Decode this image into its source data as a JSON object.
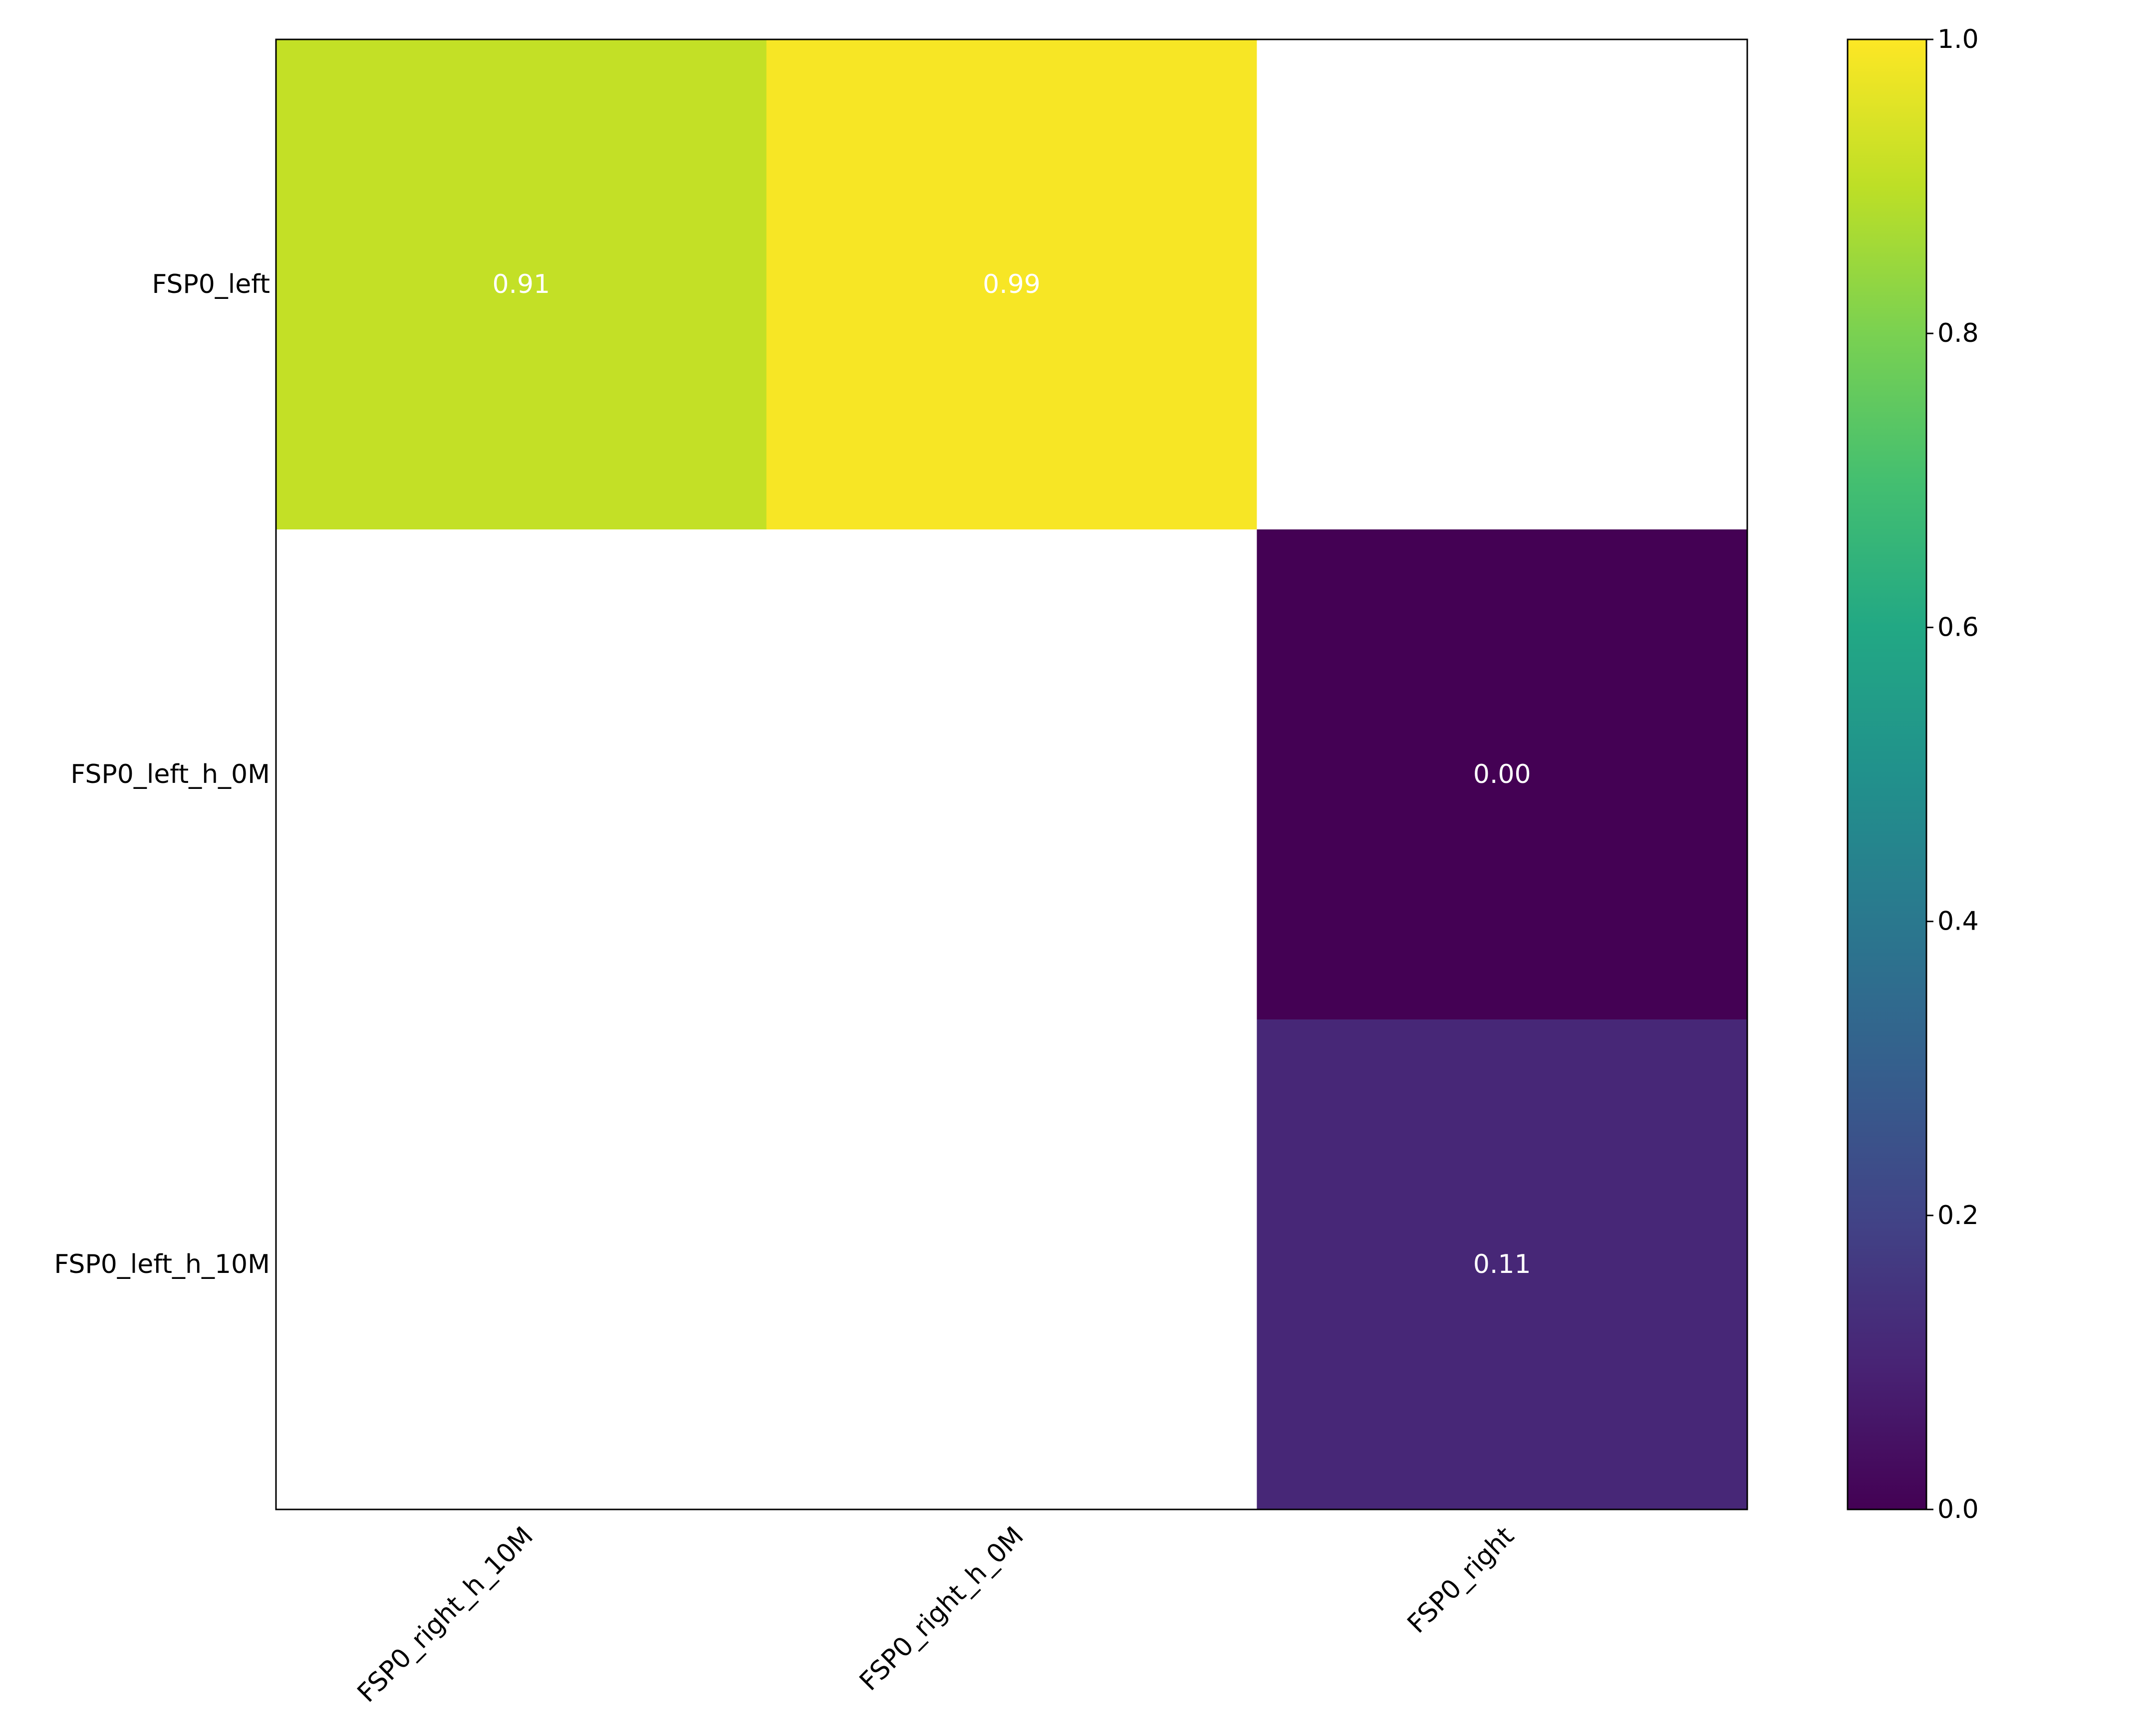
{
  "chart_data": {
    "type": "heatmap",
    "title": "",
    "xlabel": "",
    "ylabel": "",
    "x_categories": [
      "FSP0_right_h_10M",
      "FSP0_right_h_0M",
      "FSP0_right"
    ],
    "y_categories": [
      "FSP0_left",
      "FSP0_left_h_0M",
      "FSP0_left_h_10M"
    ],
    "values": [
      [
        0.91,
        0.99,
        null
      ],
      [
        null,
        null,
        0.0
      ],
      [
        null,
        null,
        0.11
      ]
    ],
    "cell_labels": [
      [
        "0.91",
        "0.99",
        ""
      ],
      [
        "",
        "",
        "0.00"
      ],
      [
        "",
        "",
        "0.11"
      ]
    ],
    "colormap": "viridis",
    "color_range": [
      0.0,
      1.0
    ],
    "missing_color": "#ffffff",
    "colorbar": {
      "ticks": [
        0.0,
        0.2,
        0.4,
        0.6,
        0.8,
        1.0
      ],
      "tick_labels": [
        "0.0",
        "0.2",
        "0.4",
        "0.6",
        "0.8",
        "1.0"
      ],
      "placement": "right"
    },
    "grid": false,
    "annotation_color": "#ffffff"
  }
}
